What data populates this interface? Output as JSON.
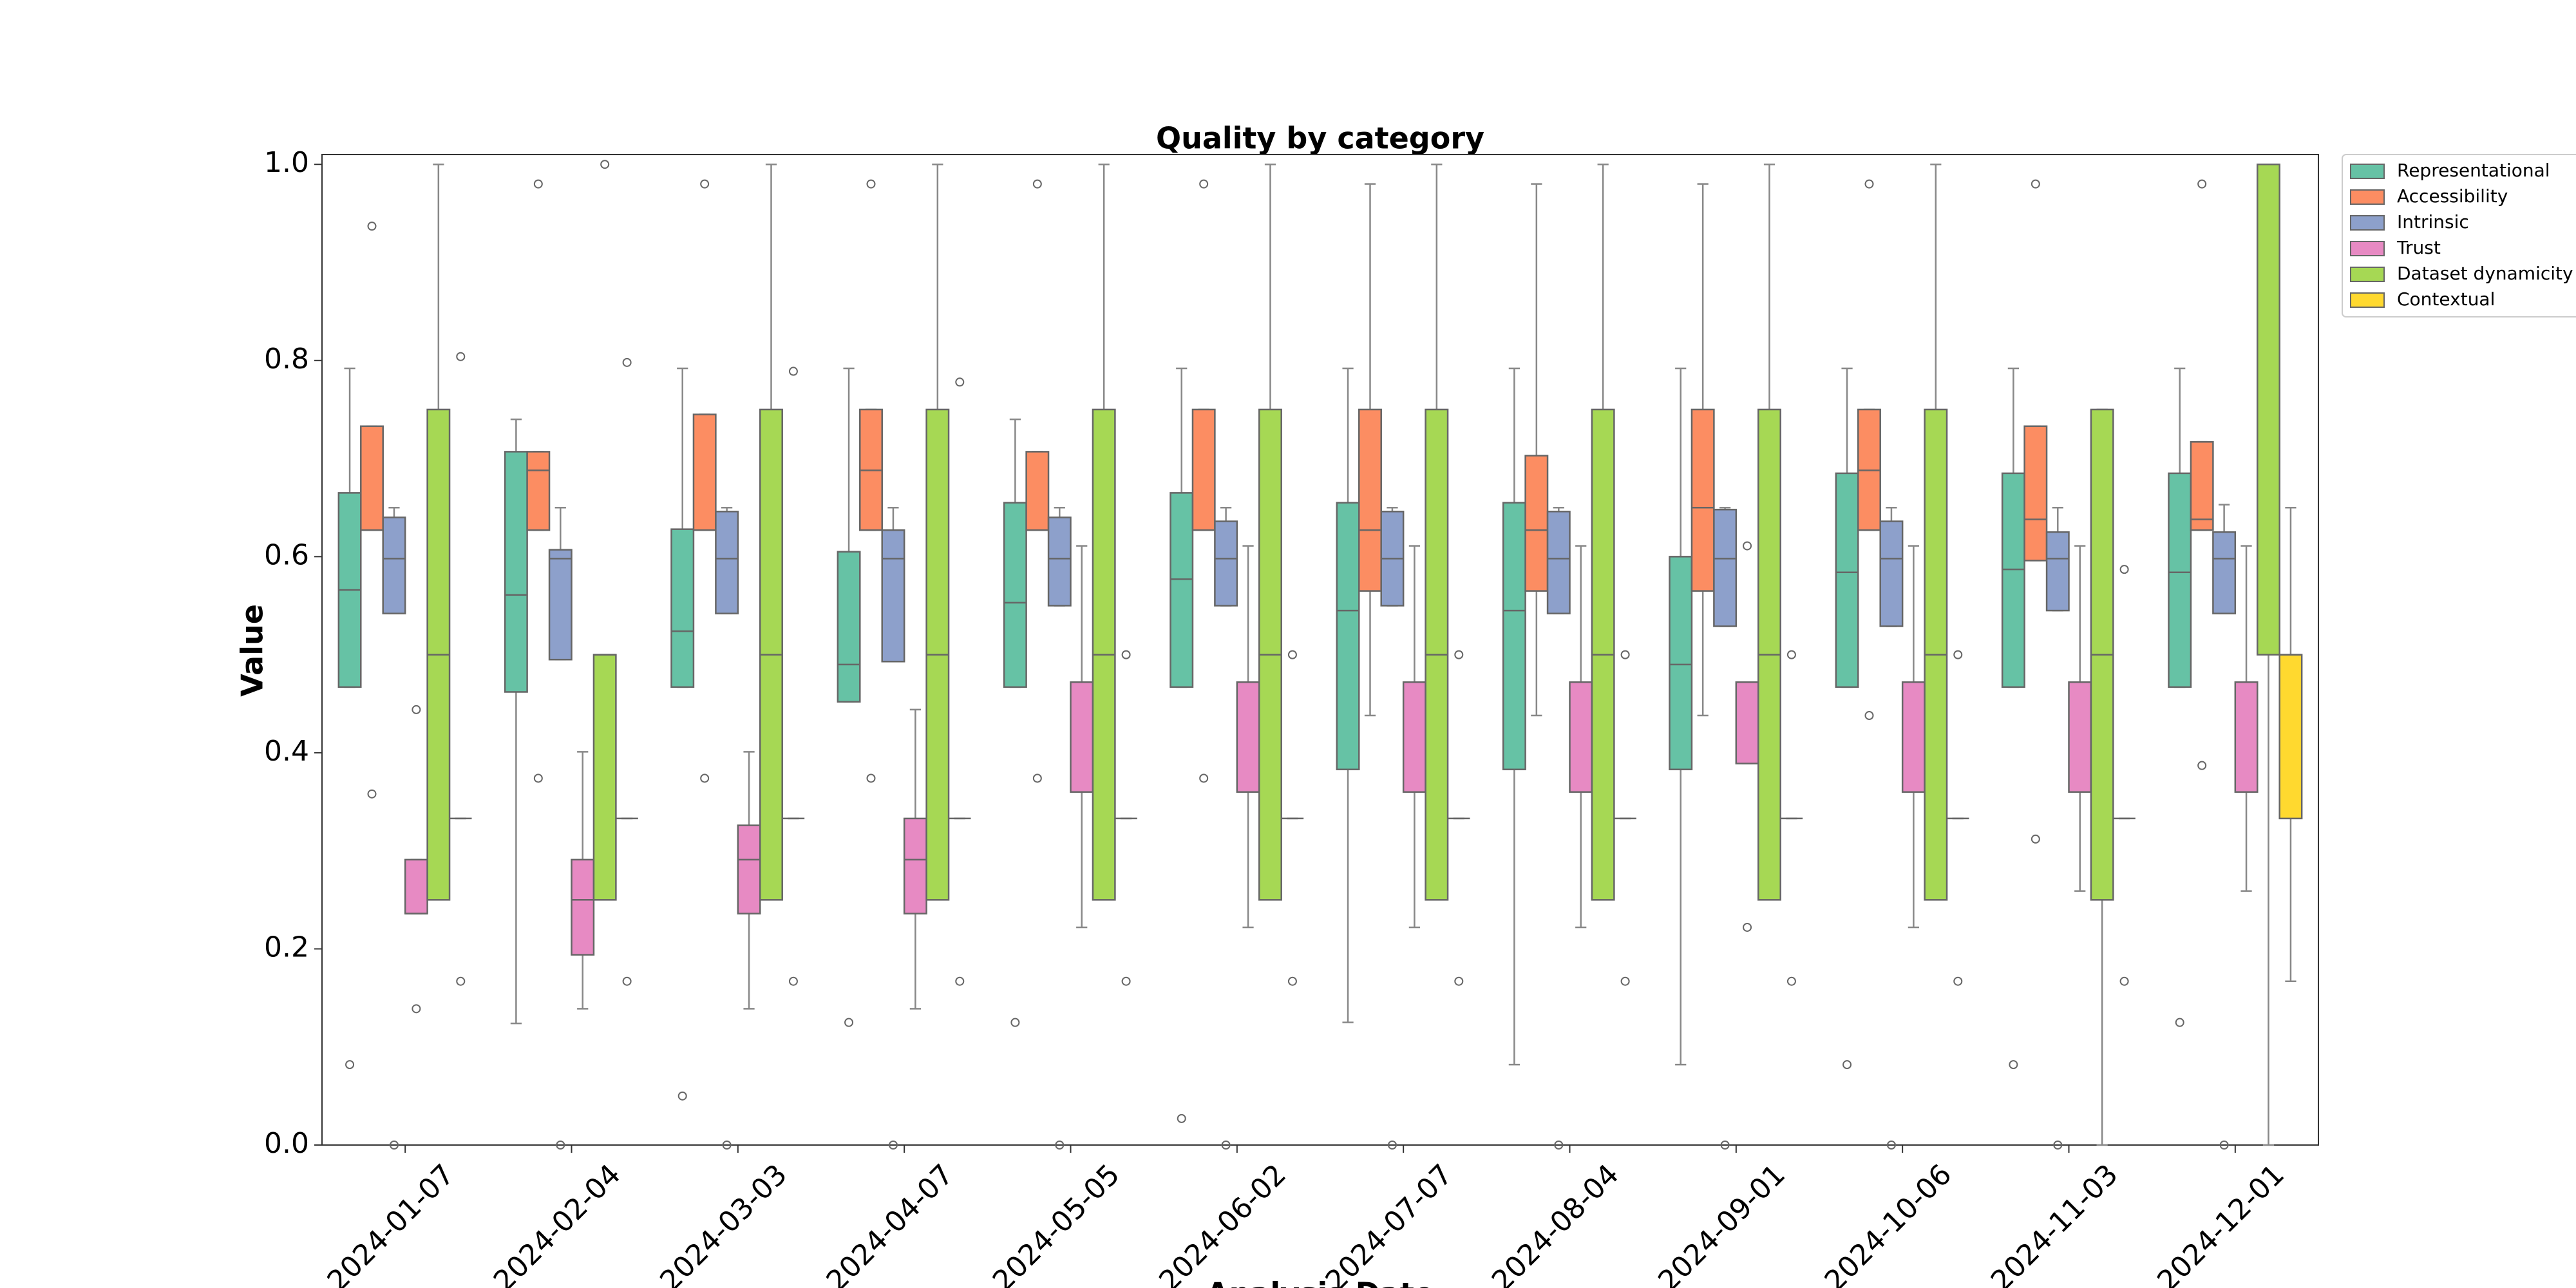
{
  "chart_data": {
    "type": "boxplot",
    "title": "Quality by category",
    "ylabel": "Value",
    "xlabel": "Analysis Date",
    "categories": [
      "2024-01-07",
      "2024-02-04",
      "2024-03-03",
      "2024-04-07",
      "2024-05-05",
      "2024-06-02",
      "2024-07-07",
      "2024-08-04",
      "2024-09-01",
      "2024-10-06",
      "2024-11-03",
      "2024-12-01"
    ],
    "ylim": [
      0,
      1.01
    ],
    "yticks": [
      {
        "value": 0,
        "label": "0.0"
      },
      {
        "value": 0.2,
        "label": "0.2"
      },
      {
        "value": 0.4,
        "label": "0.4"
      },
      {
        "value": 0.6,
        "label": "0.6"
      },
      {
        "value": 0.8,
        "label": "0.8"
      },
      {
        "value": 1,
        "label": "1.0"
      }
    ],
    "legend": "upper right outside",
    "series": [
      {
        "name": "Representational",
        "color": "#66c2a5",
        "whislo": [
          0.467,
          0.124,
          0.467,
          0.452,
          0.467,
          0.467,
          0.125,
          0.082,
          0.082,
          0.467,
          0.467,
          0.467
        ],
        "q1": [
          0.467,
          0.462,
          0.467,
          0.452,
          0.467,
          0.467,
          0.383,
          0.383,
          0.383,
          0.467,
          0.467,
          0.467
        ],
        "median": [
          0.566,
          0.561,
          0.524,
          0.49,
          0.553,
          0.577,
          0.545,
          0.545,
          0.49,
          0.584,
          0.587,
          0.584
        ],
        "q3": [
          0.665,
          0.707,
          0.628,
          0.605,
          0.655,
          0.665,
          0.655,
          0.655,
          0.6,
          0.685,
          0.685,
          0.685
        ],
        "whishi": [
          0.792,
          0.74,
          0.792,
          0.792,
          0.74,
          0.792,
          0.792,
          0.792,
          0.792,
          0.792,
          0.792,
          0.792
        ],
        "fliers": [
          [
            0.082
          ],
          [],
          [
            0.05
          ],
          [
            0.125
          ],
          [
            0.125
          ],
          [
            0.027
          ],
          [],
          [],
          [],
          [
            0.082
          ],
          [
            0.082
          ],
          [
            0.125
          ]
        ]
      },
      {
        "name": "Accessibility",
        "color": "#fc8d62",
        "whislo": [
          0.627,
          0.627,
          0.627,
          0.627,
          0.627,
          0.627,
          0.438,
          0.438,
          0.438,
          0.627,
          0.596,
          0.627
        ],
        "q1": [
          0.627,
          0.627,
          0.627,
          0.627,
          0.627,
          0.627,
          0.565,
          0.565,
          0.565,
          0.627,
          0.596,
          0.627
        ],
        "median": [
          0.627,
          0.688,
          0.627,
          0.688,
          0.627,
          0.627,
          0.627,
          0.627,
          0.65,
          0.688,
          0.638,
          0.638
        ],
        "q3": [
          0.733,
          0.707,
          0.745,
          0.75,
          0.707,
          0.75,
          0.75,
          0.703,
          0.75,
          0.75,
          0.733,
          0.717
        ],
        "whishi": [
          0.733,
          0.707,
          0.745,
          0.75,
          0.707,
          0.75,
          0.98,
          0.98,
          0.98,
          0.75,
          0.733,
          0.717
        ],
        "fliers": [
          [
            0.937,
            0.358
          ],
          [
            0.98,
            0.374
          ],
          [
            0.98,
            0.374
          ],
          [
            0.98,
            0.374
          ],
          [
            0.98,
            0.374
          ],
          [
            0.98,
            0.374
          ],
          [],
          [],
          [],
          [
            0.98,
            0.438
          ],
          [
            0.98,
            0.312
          ],
          [
            0.98,
            0.387
          ]
        ]
      },
      {
        "name": "Intrinsic",
        "color": "#8da0cb",
        "whislo": [
          0.542,
          0.495,
          0.542,
          0.493,
          0.55,
          0.55,
          0.55,
          0.542,
          0.529,
          0.529,
          0.545,
          0.542
        ],
        "q1": [
          0.542,
          0.495,
          0.542,
          0.493,
          0.55,
          0.55,
          0.55,
          0.542,
          0.529,
          0.529,
          0.545,
          0.542
        ],
        "median": [
          0.598,
          0.598,
          0.598,
          0.598,
          0.598,
          0.598,
          0.598,
          0.598,
          0.598,
          0.598,
          0.598,
          0.598
        ],
        "q3": [
          0.64,
          0.607,
          0.646,
          0.627,
          0.64,
          0.636,
          0.646,
          0.646,
          0.648,
          0.636,
          0.625,
          0.625
        ],
        "whishi": [
          0.65,
          0.65,
          0.65,
          0.65,
          0.65,
          0.65,
          0.65,
          0.65,
          0.65,
          0.65,
          0.65,
          0.653
        ],
        "fliers": [
          [
            0
          ],
          [
            0
          ],
          [
            0
          ],
          [
            0
          ],
          [
            0
          ],
          [
            0
          ],
          [
            0
          ],
          [
            0
          ],
          [
            0
          ],
          [
            0
          ],
          [
            0
          ],
          [
            0
          ]
        ]
      },
      {
        "name": "Trust",
        "color": "#e78ac3",
        "whislo": [
          0.236,
          0.139,
          0.139,
          0.139,
          0.222,
          0.222,
          0.222,
          0.222,
          0.389,
          0.222,
          0.259,
          0.259
        ],
        "q1": [
          0.236,
          0.194,
          0.236,
          0.236,
          0.36,
          0.36,
          0.36,
          0.36,
          0.389,
          0.36,
          0.36,
          0.36
        ],
        "median": [
          0.236,
          0.25,
          0.291,
          0.291,
          0.472,
          0.472,
          0.472,
          0.472,
          0.472,
          0.472,
          0.472,
          0.472
        ],
        "q3": [
          0.291,
          0.291,
          0.326,
          0.333,
          0.472,
          0.472,
          0.472,
          0.472,
          0.472,
          0.472,
          0.472,
          0.472
        ],
        "whishi": [
          0.291,
          0.401,
          0.401,
          0.444,
          0.611,
          0.611,
          0.611,
          0.611,
          0.472,
          0.611,
          0.611,
          0.611
        ],
        "fliers": [
          [
            0.444,
            0.139
          ],
          [],
          [],
          [],
          [],
          [],
          [],
          [],
          [
            0.611,
            0.222
          ],
          [],
          [],
          []
        ]
      },
      {
        "name": "Dataset dynamicity",
        "color": "#a6d854",
        "whislo": [
          0.25,
          0.25,
          0.25,
          0.25,
          0.25,
          0.25,
          0.25,
          0.25,
          0.25,
          0.25,
          0,
          0
        ],
        "q1": [
          0.25,
          0.25,
          0.25,
          0.25,
          0.25,
          0.25,
          0.25,
          0.25,
          0.25,
          0.25,
          0.25,
          0.5
        ],
        "median": [
          0.5,
          0.5,
          0.5,
          0.5,
          0.5,
          0.5,
          0.5,
          0.5,
          0.5,
          0.5,
          0.5,
          1
        ],
        "q3": [
          0.75,
          0.5,
          0.75,
          0.75,
          0.75,
          0.75,
          0.75,
          0.75,
          0.75,
          0.75,
          0.75,
          1
        ],
        "whishi": [
          1,
          0.5,
          1,
          1,
          1,
          1,
          1,
          1,
          1,
          1,
          0.75,
          1
        ],
        "fliers": [
          [],
          [
            1
          ],
          [],
          [],
          [],
          [],
          [],
          [],
          [],
          [],
          [],
          []
        ]
      },
      {
        "name": "Contextual",
        "color": "#ffd92f",
        "whislo": [
          0.333,
          0.333,
          0.333,
          0.333,
          0.333,
          0.333,
          0.333,
          0.333,
          0.333,
          0.333,
          0.333,
          0.167
        ],
        "q1": [
          0.333,
          0.333,
          0.333,
          0.333,
          0.333,
          0.333,
          0.333,
          0.333,
          0.333,
          0.333,
          0.333,
          0.333
        ],
        "median": [
          0.333,
          0.333,
          0.333,
          0.333,
          0.333,
          0.333,
          0.333,
          0.333,
          0.333,
          0.333,
          0.333,
          0.5
        ],
        "q3": [
          0.333,
          0.333,
          0.333,
          0.333,
          0.333,
          0.333,
          0.333,
          0.333,
          0.333,
          0.333,
          0.333,
          0.5
        ],
        "whishi": [
          0.333,
          0.333,
          0.333,
          0.333,
          0.333,
          0.333,
          0.333,
          0.333,
          0.333,
          0.333,
          0.333,
          0.65
        ],
        "fliers": [
          [
            0.804,
            0.167
          ],
          [
            0.798,
            0.167
          ],
          [
            0.789,
            0.167
          ],
          [
            0.778,
            0.167
          ],
          [
            0.5,
            0.167
          ],
          [
            0.5,
            0.167
          ],
          [
            0.5,
            0.167
          ],
          [
            0.5,
            0.167
          ],
          [
            0.5,
            0.167
          ],
          [
            0.5,
            0.167
          ],
          [
            0.587,
            0.167
          ],
          []
        ]
      }
    ]
  }
}
